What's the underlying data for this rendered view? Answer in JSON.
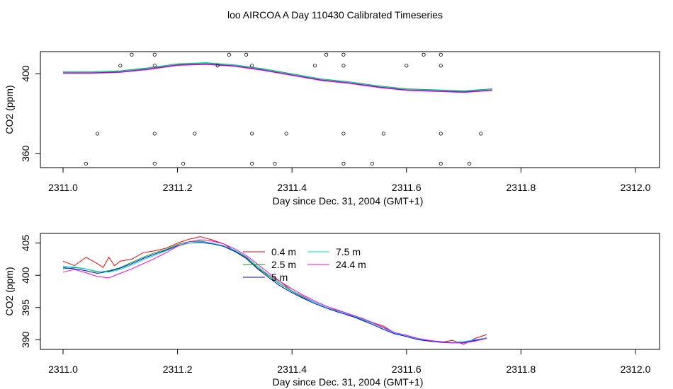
{
  "page_title": "loo AIRCOA A  Day 110430  Calibrated Timeseries",
  "chart_data": [
    {
      "type": "scatter+line",
      "xlabel": "Day since Dec. 31, 2004 (GMT+1)",
      "ylabel": "CO2 (ppm)",
      "xlim": [
        2311.0,
        2312.0
      ],
      "ylim": [
        353,
        411
      ],
      "x_ticks": [
        "2311.0",
        "2311.2",
        "2311.4",
        "2311.6",
        "2311.8",
        "2312.0"
      ],
      "y_ticks": [
        "360",
        "400"
      ],
      "y_tick_values": [
        360,
        400
      ],
      "colors": {
        "line1": "#ff0000",
        "line2": "#00aa00",
        "line3": "#0000ff",
        "line4": "#00dddd",
        "line5": "#ff00ff",
        "points": "#000000"
      },
      "points": [
        [
          2311.12,
          409.5
        ],
        [
          2311.16,
          409.5
        ],
        [
          2311.29,
          409.5
        ],
        [
          2311.32,
          409.5
        ],
        [
          2311.46,
          409.5
        ],
        [
          2311.49,
          409.5
        ],
        [
          2311.63,
          409.5
        ],
        [
          2311.66,
          409.5
        ],
        [
          2311.1,
          404
        ],
        [
          2311.16,
          404
        ],
        [
          2311.27,
          404
        ],
        [
          2311.33,
          404
        ],
        [
          2311.44,
          404
        ],
        [
          2311.49,
          404
        ],
        [
          2311.6,
          404
        ],
        [
          2311.66,
          404
        ],
        [
          2311.06,
          370
        ],
        [
          2311.16,
          370
        ],
        [
          2311.23,
          370
        ],
        [
          2311.33,
          370
        ],
        [
          2311.39,
          370
        ],
        [
          2311.49,
          370
        ],
        [
          2311.56,
          370
        ],
        [
          2311.66,
          370
        ],
        [
          2311.73,
          370
        ],
        [
          2311.04,
          355
        ],
        [
          2311.16,
          355
        ],
        [
          2311.21,
          355
        ],
        [
          2311.33,
          355
        ],
        [
          2311.37,
          355
        ],
        [
          2311.49,
          355
        ],
        [
          2311.54,
          355
        ],
        [
          2311.66,
          355
        ],
        [
          2311.71,
          355
        ]
      ],
      "lines": [
        {
          "x": [
            2311.0,
            2311.05,
            2311.1,
            2311.15,
            2311.2,
            2311.25,
            2311.3,
            2311.35,
            2311.4,
            2311.45,
            2311.5,
            2311.55,
            2311.6,
            2311.65,
            2311.7,
            2311.75
          ],
          "y": [
            400.5,
            400.5,
            401,
            402.5,
            404.5,
            405,
            404,
            402,
            399.5,
            397,
            395.5,
            393.5,
            392,
            391.5,
            391,
            392
          ]
        }
      ]
    },
    {
      "type": "line",
      "xlabel": "Day since Dec. 31, 2004 (GMT+1)",
      "ylabel": "CO2 (ppm)",
      "xlim": [
        2311.0,
        2312.0
      ],
      "ylim": [
        388.5,
        406.5
      ],
      "x_ticks": [
        "2311.0",
        "2311.2",
        "2311.4",
        "2311.6",
        "2311.8",
        "2312.0"
      ],
      "y_ticks": [
        "390",
        "395",
        "400",
        "405"
      ],
      "y_tick_values": [
        390,
        395,
        400,
        405
      ],
      "legend_placement": "top-center",
      "series": [
        {
          "name": "0.4 m",
          "color": "#ff0000",
          "x": [
            2311.0,
            2311.02,
            2311.04,
            2311.06,
            2311.07,
            2311.08,
            2311.09,
            2311.1,
            2311.12,
            2311.14,
            2311.16,
            2311.18,
            2311.2,
            2311.22,
            2311.24,
            2311.26,
            2311.28,
            2311.3,
            2311.32,
            2311.34,
            2311.36,
            2311.38,
            2311.4,
            2311.42,
            2311.44,
            2311.46,
            2311.48,
            2311.5,
            2311.52,
            2311.54,
            2311.56,
            2311.58,
            2311.6,
            2311.62,
            2311.64,
            2311.66,
            2311.68,
            2311.7,
            2311.72,
            2311.74
          ],
          "y": [
            402.2,
            401.5,
            402.8,
            401.8,
            401.2,
            402.8,
            401.5,
            402.2,
            402.5,
            403.5,
            403.8,
            404.2,
            405.0,
            405.6,
            406.0,
            405.5,
            404.9,
            403.8,
            402.8,
            401.0,
            400.0,
            399.0,
            397.6,
            396.7,
            395.8,
            395.0,
            394.5,
            393.7,
            393.4,
            392.7,
            392.1,
            391.0,
            390.5,
            390.0,
            389.9,
            389.6,
            389.9,
            389.3,
            390.2,
            390.8
          ]
        },
        {
          "name": "2.5 m",
          "color": "#00aa00",
          "x": [
            2311.0,
            2311.02,
            2311.04,
            2311.06,
            2311.08,
            2311.1,
            2311.12,
            2311.14,
            2311.16,
            2311.18,
            2311.2,
            2311.22,
            2311.24,
            2311.26,
            2311.28,
            2311.3,
            2311.32,
            2311.34,
            2311.36,
            2311.38,
            2311.4,
            2311.42,
            2311.44,
            2311.46,
            2311.48,
            2311.5,
            2311.52,
            2311.54,
            2311.56,
            2311.58,
            2311.6,
            2311.62,
            2311.64,
            2311.66,
            2311.68,
            2311.7,
            2311.72,
            2311.74
          ],
          "y": [
            401.0,
            401.2,
            401.0,
            400.5,
            400.7,
            401.2,
            402.0,
            402.8,
            403.5,
            404.0,
            404.8,
            405.2,
            405.3,
            405.0,
            404.6,
            403.8,
            402.7,
            401.2,
            399.8,
            398.6,
            397.5,
            396.5,
            395.8,
            395.0,
            394.3,
            393.8,
            393.2,
            392.6,
            391.8,
            391.0,
            390.6,
            390.0,
            389.8,
            389.7,
            389.6,
            389.6,
            389.9,
            390.3
          ]
        },
        {
          "name": "5 m",
          "color": "#0000ff",
          "x": [
            2311.0,
            2311.02,
            2311.04,
            2311.06,
            2311.08,
            2311.1,
            2311.12,
            2311.14,
            2311.16,
            2311.18,
            2311.2,
            2311.22,
            2311.24,
            2311.26,
            2311.28,
            2311.3,
            2311.32,
            2311.34,
            2311.36,
            2311.38,
            2311.4,
            2311.42,
            2311.44,
            2311.46,
            2311.48,
            2311.5,
            2311.52,
            2311.54,
            2311.56,
            2311.58,
            2311.6,
            2311.62,
            2311.64,
            2311.66,
            2311.68,
            2311.7,
            2311.72,
            2311.74
          ],
          "y": [
            401.2,
            401.0,
            400.7,
            400.3,
            400.6,
            401.1,
            401.8,
            402.6,
            403.3,
            403.9,
            404.6,
            405.0,
            405.1,
            404.9,
            404.5,
            403.7,
            402.6,
            401.0,
            399.6,
            398.3,
            397.3,
            396.4,
            395.6,
            394.9,
            394.3,
            393.8,
            393.1,
            392.4,
            391.6,
            390.9,
            390.5,
            390.0,
            389.8,
            389.6,
            389.5,
            389.6,
            389.9,
            390.2
          ]
        },
        {
          "name": "7.5 m",
          "color": "#00dddd",
          "x": [
            2311.0,
            2311.02,
            2311.04,
            2311.06,
            2311.08,
            2311.1,
            2311.12,
            2311.14,
            2311.16,
            2311.18,
            2311.2,
            2311.22,
            2311.24,
            2311.26,
            2311.28,
            2311.3,
            2311.32,
            2311.34,
            2311.36,
            2311.38,
            2311.4,
            2311.42,
            2311.44,
            2311.46,
            2311.48,
            2311.5,
            2311.52,
            2311.54,
            2311.56,
            2311.58,
            2311.6,
            2311.62,
            2311.64,
            2311.66,
            2311.68,
            2311.7,
            2311.72,
            2311.74
          ],
          "y": [
            401.4,
            401.3,
            401.0,
            400.6,
            400.5,
            400.9,
            401.6,
            402.4,
            403.1,
            403.8,
            404.5,
            405.0,
            405.2,
            405.0,
            404.6,
            403.9,
            402.9,
            401.4,
            400.0,
            398.7,
            397.6,
            396.6,
            395.8,
            395.0,
            394.4,
            393.9,
            393.3,
            392.6,
            391.8,
            391.0,
            390.6,
            390.1,
            389.9,
            389.7,
            389.6,
            389.7,
            390.0,
            390.3
          ]
        },
        {
          "name": "24.4 m",
          "color": "#ff00ff",
          "x": [
            2311.0,
            2311.02,
            2311.04,
            2311.06,
            2311.08,
            2311.1,
            2311.12,
            2311.14,
            2311.16,
            2311.18,
            2311.2,
            2311.22,
            2311.24,
            2311.26,
            2311.28,
            2311.3,
            2311.32,
            2311.34,
            2311.36,
            2311.38,
            2311.4,
            2311.42,
            2311.44,
            2311.46,
            2311.48,
            2311.5,
            2311.52,
            2311.54,
            2311.56,
            2311.58,
            2311.6,
            2311.62,
            2311.64,
            2311.66,
            2311.68,
            2311.7,
            2311.72,
            2311.74
          ],
          "y": [
            400.5,
            400.9,
            400.4,
            399.8,
            399.6,
            400.3,
            401.0,
            401.8,
            402.6,
            403.5,
            404.5,
            405.2,
            405.5,
            405.3,
            404.9,
            404.1,
            403.1,
            401.7,
            400.3,
            399.0,
            397.9,
            396.9,
            396.0,
            395.2,
            394.6,
            394.0,
            393.4,
            392.7,
            391.9,
            391.1,
            390.7,
            390.2,
            389.9,
            389.7,
            389.5,
            389.5,
            389.8,
            390.2
          ]
        }
      ]
    }
  ]
}
